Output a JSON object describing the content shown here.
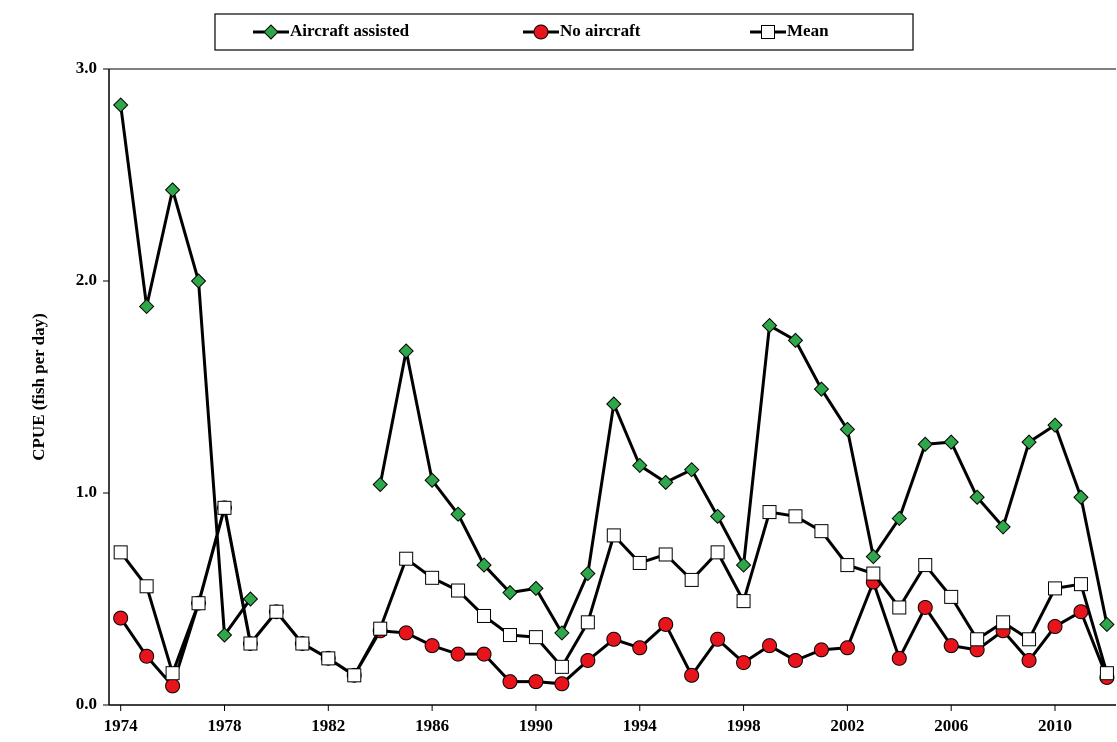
{
  "chart_data": {
    "type": "line",
    "y_label": "CPUE (fish per day)",
    "x": [
      1974,
      1975,
      1976,
      1977,
      1978,
      1979,
      1980,
      1981,
      1982,
      1983,
      1984,
      1985,
      1986,
      1987,
      1988,
      1989,
      1990,
      1991,
      1992,
      1993,
      1994,
      1995,
      1996,
      1997,
      1998,
      1999,
      2000,
      2001,
      2002,
      2003,
      2004,
      2005,
      2006,
      2007,
      2008,
      2009,
      2010,
      2011,
      2012
    ],
    "series": [
      {
        "name": "Aircraft assisted",
        "color": "#2ea64a",
        "marker": "diamond",
        "values": [
          2.83,
          1.88,
          2.43,
          2.0,
          0.33,
          0.5,
          null,
          null,
          null,
          null,
          1.04,
          1.67,
          1.06,
          0.9,
          0.66,
          0.53,
          0.55,
          0.34,
          0.62,
          1.42,
          1.13,
          1.05,
          1.11,
          0.89,
          0.66,
          1.79,
          1.72,
          1.49,
          1.3,
          0.7,
          0.88,
          1.23,
          1.24,
          0.98,
          0.84,
          1.24,
          1.32,
          0.98,
          0.38
        ]
      },
      {
        "name": "No aircraft",
        "color": "#e8141c",
        "marker": "circle",
        "values": [
          0.41,
          0.23,
          0.09,
          0.48,
          0.93,
          0.29,
          0.44,
          0.29,
          0.22,
          0.14,
          0.35,
          0.34,
          0.28,
          0.24,
          0.24,
          0.11,
          0.11,
          0.1,
          0.21,
          0.31,
          0.27,
          0.38,
          0.14,
          0.31,
          0.2,
          0.28,
          0.21,
          0.26,
          0.27,
          0.58,
          0.22,
          0.46,
          0.28,
          0.26,
          0.35,
          0.21,
          0.37,
          0.44,
          0.13
        ]
      },
      {
        "name": "Mean",
        "color": "#ffffff",
        "marker": "square",
        "values": [
          0.72,
          0.56,
          0.15,
          0.48,
          0.93,
          0.29,
          0.44,
          0.29,
          0.22,
          0.14,
          0.36,
          0.69,
          0.6,
          0.54,
          0.42,
          0.33,
          0.32,
          0.18,
          0.39,
          0.8,
          0.67,
          0.71,
          0.59,
          0.72,
          0.49,
          0.91,
          0.89,
          0.82,
          0.66,
          0.62,
          0.46,
          0.66,
          0.51,
          0.31,
          0.39,
          0.31,
          0.55,
          0.57,
          0.15
        ]
      }
    ],
    "xlim": [
      1973.55,
      2012.35
    ],
    "xticks": [
      1974,
      1978,
      1982,
      1986,
      1990,
      1994,
      1998,
      2002,
      2006,
      2010
    ],
    "ylim": [
      0,
      3
    ],
    "yticks": [
      {
        "value": 0,
        "label": "0.0"
      },
      {
        "value": 1,
        "label": "1.0"
      },
      {
        "value": 2,
        "label": "2.0"
      },
      {
        "value": 3,
        "label": "3.0"
      }
    ],
    "line_color": "#000000",
    "legend": "top"
  }
}
